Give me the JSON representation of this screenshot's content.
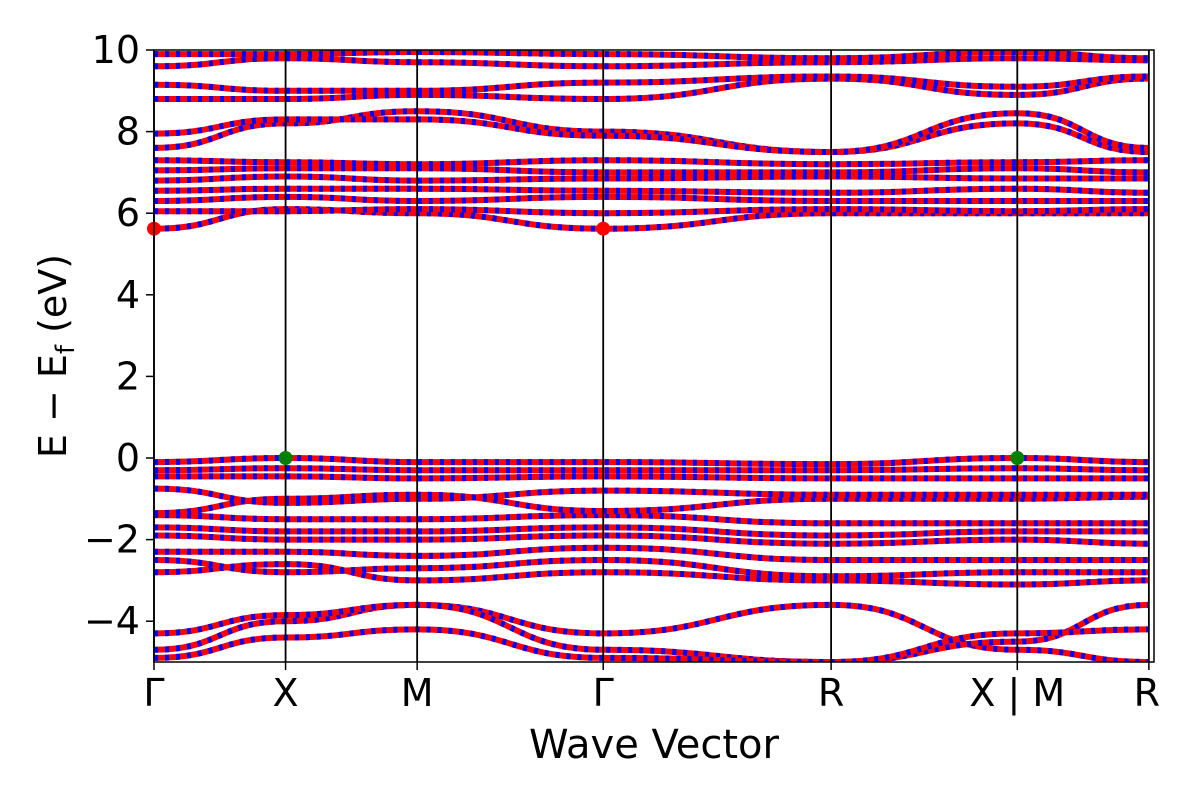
{
  "chart_data": {
    "type": "line",
    "xlabel": "Wave Vector",
    "ylabel": "E − E",
    "ylabel_subscript": "f",
    "ylabel_unit": "(eV)",
    "ylim": [
      -5,
      10
    ],
    "yticks": [
      -4,
      -2,
      0,
      2,
      4,
      6,
      8,
      10
    ],
    "ytick_labels": [
      "−4",
      "−2",
      "0",
      "2",
      "4",
      "6",
      "8",
      "10"
    ],
    "xlim": [
      0,
      7.6
    ],
    "kpoints": [
      {
        "label": "Γ",
        "x": 0.0
      },
      {
        "label": "X",
        "x": 1.0
      },
      {
        "label": "M",
        "x": 2.0
      },
      {
        "label": "Γ",
        "x": 3.414
      },
      {
        "label": "R",
        "x": 5.146
      },
      {
        "label": "X | M",
        "x": 6.561
      },
      {
        "label": "R",
        "x": 7.561
      }
    ],
    "grid": false,
    "legend": "none",
    "colors": {
      "band": "#ff0000",
      "projection": "#0000ff",
      "cbm": "#ff0000",
      "vbm": "#008000"
    },
    "markers": [
      {
        "name": "CBM",
        "x": 0.0,
        "y": 5.62,
        "color": "#ff0000"
      },
      {
        "name": "CBM",
        "x": 3.414,
        "y": 5.62,
        "color": "#ff0000"
      },
      {
        "name": "VBM",
        "x": 1.0,
        "y": 0.0,
        "color": "#008000"
      },
      {
        "name": "VBM",
        "x": 6.561,
        "y": 0.0,
        "color": "#008000"
      }
    ],
    "series": [
      {
        "band": "valence",
        "x": [
          0,
          1,
          2,
          3.414,
          5.146,
          6.561,
          7.561
        ],
        "y": [
          -4.7,
          -4.0,
          -3.6,
          -4.3,
          -3.6,
          -4.7,
          -5.0
        ]
      },
      {
        "band": "valence",
        "x": [
          0,
          1,
          2,
          3.414,
          5.146,
          6.561,
          7.561
        ],
        "y": [
          -4.3,
          -3.85,
          -3.6,
          -4.7,
          -5.0,
          -4.5,
          -3.6
        ]
      },
      {
        "band": "valence",
        "x": [
          0,
          1,
          2,
          3.414,
          5.146,
          6.561,
          7.561
        ],
        "y": [
          -4.9,
          -4.4,
          -4.2,
          -4.9,
          -5.0,
          -4.3,
          -4.2
        ]
      },
      {
        "band": "valence",
        "x": [
          0,
          1,
          2,
          3.414,
          5.146,
          6.561,
          7.561
        ],
        "y": [
          -2.8,
          -2.6,
          -3.0,
          -2.8,
          -3.0,
          -3.1,
          -3.0
        ]
      },
      {
        "band": "valence",
        "x": [
          0,
          1,
          2,
          3.414,
          5.146,
          6.561,
          7.561
        ],
        "y": [
          -2.5,
          -2.8,
          -2.7,
          -2.5,
          -2.9,
          -2.8,
          -2.8
        ]
      },
      {
        "band": "valence",
        "x": [
          0,
          1,
          2,
          3.414,
          5.146,
          6.561,
          7.561
        ],
        "y": [
          -2.3,
          -2.3,
          -2.4,
          -2.2,
          -2.5,
          -2.5,
          -2.5
        ]
      },
      {
        "band": "valence",
        "x": [
          0,
          1,
          2,
          3.414,
          5.146,
          6.561,
          7.561
        ],
        "y": [
          -1.9,
          -2.0,
          -2.0,
          -1.9,
          -2.1,
          -2.0,
          -2.1
        ]
      },
      {
        "band": "valence",
        "x": [
          0,
          1,
          2,
          3.414,
          5.146,
          6.561,
          7.561
        ],
        "y": [
          -1.7,
          -1.8,
          -1.8,
          -1.7,
          -1.9,
          -1.8,
          -1.8
        ]
      },
      {
        "band": "valence",
        "x": [
          0,
          1,
          2,
          3.414,
          5.146,
          6.561,
          7.561
        ],
        "y": [
          -1.4,
          -1.5,
          -1.5,
          -1.4,
          -1.6,
          -1.6,
          -1.6
        ]
      },
      {
        "band": "valence",
        "x": [
          0,
          1,
          2,
          3.414,
          5.146,
          6.561,
          7.561
        ],
        "y": [
          -1.35,
          -1.0,
          -0.9,
          -1.3,
          -1.0,
          -1.0,
          -0.95
        ]
      },
      {
        "band": "valence",
        "x": [
          0,
          1,
          2,
          3.414,
          5.146,
          6.561,
          7.561
        ],
        "y": [
          -0.75,
          -1.1,
          -1.0,
          -0.8,
          -0.9,
          -0.9,
          -0.9
        ]
      },
      {
        "band": "valence",
        "x": [
          0,
          1,
          2,
          3.414,
          5.146,
          6.561,
          7.561
        ],
        "y": [
          -0.45,
          -0.45,
          -0.5,
          -0.45,
          -0.5,
          -0.5,
          -0.5
        ]
      },
      {
        "band": "valence",
        "x": [
          0,
          1,
          2,
          3.414,
          5.146,
          6.561,
          7.561
        ],
        "y": [
          -0.3,
          -0.25,
          -0.3,
          -0.3,
          -0.3,
          -0.25,
          -0.3
        ]
      },
      {
        "band": "valence",
        "x": [
          0,
          1,
          2,
          3.414,
          5.146,
          6.561,
          7.561
        ],
        "y": [
          -0.1,
          0.0,
          -0.1,
          -0.1,
          -0.15,
          0.0,
          -0.1
        ]
      },
      {
        "band": "conduction",
        "x": [
          0,
          1,
          2,
          3.414,
          5.146,
          6.561,
          7.561
        ],
        "y": [
          5.62,
          6.1,
          6.0,
          5.62,
          6.0,
          6.0,
          6.0
        ]
      },
      {
        "band": "conduction",
        "x": [
          0,
          1,
          2,
          3.414,
          5.146,
          6.561,
          7.561
        ],
        "y": [
          6.05,
          6.05,
          6.1,
          6.0,
          6.1,
          6.05,
          6.1
        ]
      },
      {
        "band": "conduction",
        "x": [
          0,
          1,
          2,
          3.414,
          5.146,
          6.561,
          7.561
        ],
        "y": [
          6.3,
          6.4,
          6.3,
          6.4,
          6.3,
          6.3,
          6.3
        ]
      },
      {
        "band": "conduction",
        "x": [
          0,
          1,
          2,
          3.414,
          5.146,
          6.561,
          7.561
        ],
        "y": [
          6.55,
          6.6,
          6.6,
          6.55,
          6.5,
          6.6,
          6.5
        ]
      },
      {
        "band": "conduction",
        "x": [
          0,
          1,
          2,
          3.414,
          5.146,
          6.561,
          7.561
        ],
        "y": [
          6.8,
          6.9,
          6.8,
          6.85,
          6.9,
          6.85,
          6.85
        ]
      },
      {
        "band": "conduction",
        "x": [
          0,
          1,
          2,
          3.414,
          5.146,
          6.561,
          7.561
        ],
        "y": [
          7.05,
          7.1,
          7.1,
          7.0,
          7.0,
          7.1,
          7.0
        ]
      },
      {
        "band": "conduction",
        "x": [
          0,
          1,
          2,
          3.414,
          5.146,
          6.561,
          7.561
        ],
        "y": [
          7.3,
          7.25,
          7.2,
          7.3,
          7.2,
          7.25,
          7.3
        ]
      },
      {
        "band": "conduction",
        "x": [
          0,
          1,
          2,
          3.414,
          5.146,
          6.561,
          7.561
        ],
        "y": [
          7.6,
          8.2,
          8.5,
          8.0,
          7.5,
          8.2,
          7.5
        ]
      },
      {
        "band": "conduction",
        "x": [
          0,
          1,
          2,
          3.414,
          5.146,
          6.561,
          7.561
        ],
        "y": [
          7.95,
          8.3,
          8.3,
          7.9,
          7.5,
          8.45,
          7.6
        ]
      },
      {
        "band": "conduction",
        "x": [
          0,
          1,
          2,
          3.414,
          5.146,
          6.561,
          7.561
        ],
        "y": [
          8.8,
          8.8,
          8.9,
          8.8,
          9.3,
          8.9,
          9.3
        ]
      },
      {
        "band": "conduction",
        "x": [
          0,
          1,
          2,
          3.414,
          5.146,
          6.561,
          7.561
        ],
        "y": [
          9.15,
          9.0,
          9.0,
          9.2,
          9.35,
          9.1,
          9.35
        ]
      },
      {
        "band": "conduction",
        "x": [
          0,
          1,
          2,
          3.414,
          5.146,
          6.561,
          7.561
        ],
        "y": [
          9.6,
          9.8,
          9.7,
          9.6,
          9.7,
          9.8,
          9.75
        ]
      },
      {
        "band": "conduction",
        "x": [
          0,
          1,
          2,
          3.414,
          5.146,
          6.561,
          7.561
        ],
        "y": [
          9.9,
          9.9,
          9.95,
          9.9,
          9.8,
          9.95,
          9.8
        ]
      }
    ]
  }
}
